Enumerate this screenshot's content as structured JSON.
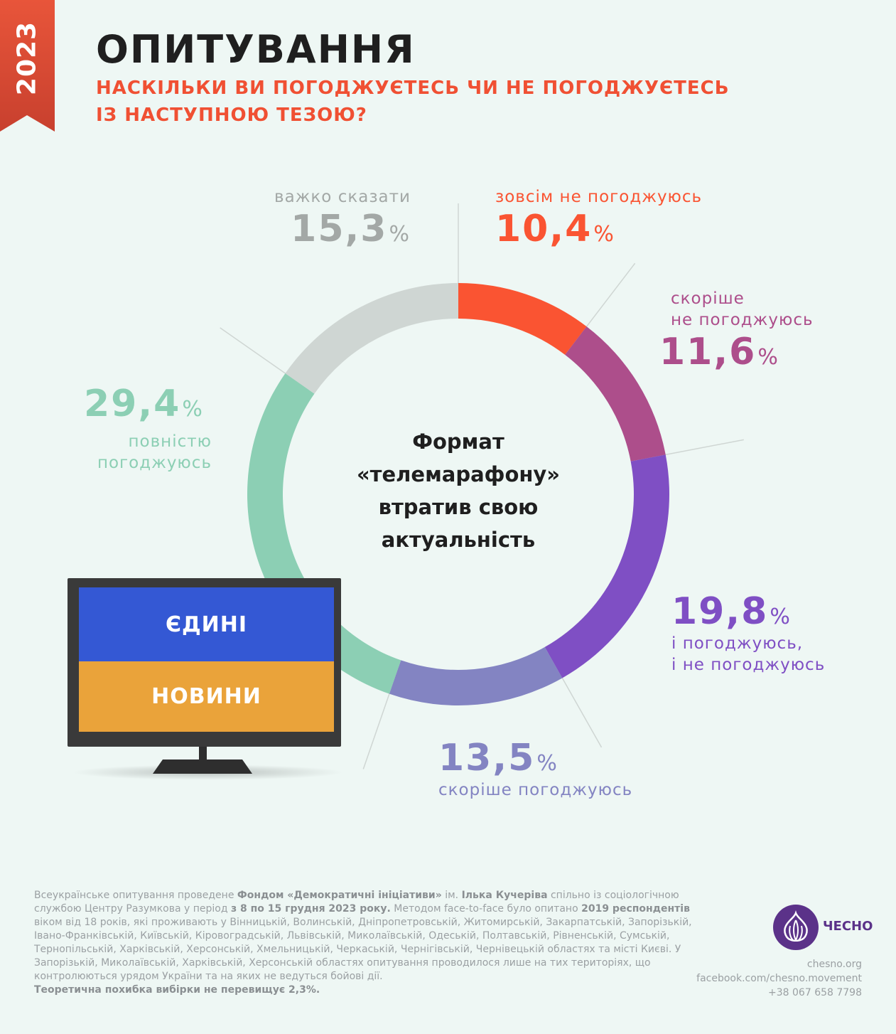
{
  "year": "2023",
  "title": "ОПИТУВАННЯ",
  "subtitle_lines": [
    "НАСКІЛЬКИ ВИ ПОГОДЖУЄТЕСЬ ЧИ НЕ ПОГОДЖУЄТЕСЬ",
    "ІЗ НАСТУПНОЮ ТЕЗОЮ?"
  ],
  "center_lines": [
    "Формат",
    "«телемарафону»",
    "втратив свою",
    "актуальність"
  ],
  "percent_sign": "%",
  "labels": {
    "s0": {
      "value": "10,4",
      "name": [
        "зовсім не погоджуюсь"
      ]
    },
    "s1": {
      "value": "11,6",
      "name": [
        "скоріше",
        "не погоджуюсь"
      ]
    },
    "s2": {
      "value": "19,8",
      "name": [
        "і погоджуюсь,",
        "і не погоджуюсь"
      ]
    },
    "s3": {
      "value": "13,5",
      "name": [
        "скоріше погоджуюсь"
      ]
    },
    "s4": {
      "value": "29,4",
      "name": [
        "повністю",
        "погоджуюсь"
      ]
    },
    "s5": {
      "value": "15,3",
      "name": [
        "важко сказати"
      ]
    }
  },
  "chart_data": {
    "type": "pie",
    "variant": "donut",
    "unit": "%",
    "categories": [
      "зовсім не погоджуюсь",
      "скоріше не погоджуюсь",
      "і погоджуюсь, і не погоджуюсь",
      "скоріше погоджуюсь",
      "повністю погоджуюсь",
      "важко сказати"
    ],
    "values": [
      10.4,
      11.6,
      19.8,
      13.5,
      29.4,
      15.3
    ],
    "colors": [
      "#fa5432",
      "#ad4e8b",
      "#7f4fc4",
      "#8384c2",
      "#8ccfb4",
      "#cfd6d3"
    ]
  },
  "tv": {
    "top_text": "ЄДИНІ",
    "bottom_text": "НОВИНИ",
    "top_color": "#3458d4",
    "bottom_color": "#eaa33a"
  },
  "footnote": {
    "p1": "Всеукраїнське опитування проведене ",
    "b1": "Фондом «Демократичні ініціативи»",
    "p2": " ім. ",
    "b2": "Ілька Кучеріва",
    "p3": " спільно із соціологічною службою Центру Разумкова у період ",
    "b3": "з 8 по 15 грудня 2023 року.",
    "p4": " Методом face-to-face було опитано ",
    "b4": "2019 респондентів",
    "p5": " віком від 18 років, які проживають у Вінницькій, Волинській, Дніпропетровській, Житомирській, Закарпатській, Запорізькій, Івано-Франківській, Київській, Кіровоградській, Львівській, Миколаївській, Одеській, Полтавській, Рівненській, Сумській, Тернопільській, Харківській, Херсонській, Хмельницькій, Черкаській, Чернігівській, Чернівецькій областях та місті Києві. У Запорізькій, Миколаївській, Харківській, Херсонській областях опитування проводилося лише на тих територіях, що контролюються урядом України та на яких не ведуться бойові дії.",
    "b5": "Теоретична похибка вибірки не перевищує 2,3%."
  },
  "logo_text": "ЧЕСНО",
  "contacts": [
    "chesno.org",
    "facebook.com/chesno.movement",
    "+38 067 658 7798"
  ]
}
